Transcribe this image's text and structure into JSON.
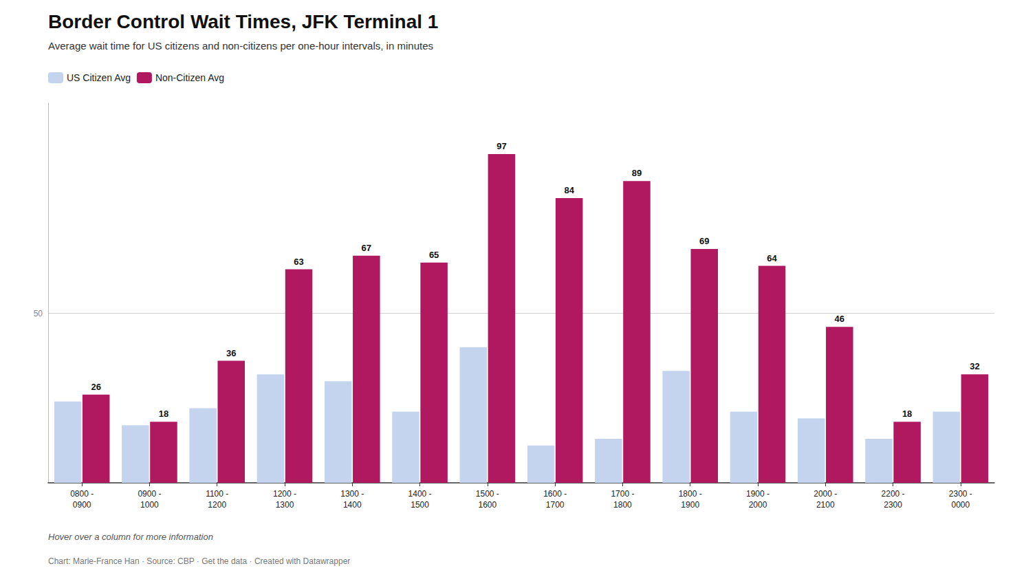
{
  "chart_data": {
    "type": "bar",
    "title": "Border Control Wait Times, JFK Terminal 1",
    "subtitle": "Average wait time for US citizens and non-citizens per one-hour intervals, in minutes",
    "annotations": [
      "Hover over a column for more information",
      "Chart: Marie-France Han · Source: CBP · Get the data · Created with Datawrapper"
    ],
    "categories": [
      "0800 -\n0900",
      "0900 -\n1000",
      "1100 -\n1200",
      "1200 -\n1300",
      "1300 -\n1400",
      "1400 -\n1500",
      "1500 -\n1600",
      "1600 -\n1700",
      "1700 -\n1800",
      "1800 -\n1900",
      "1900 -\n2000",
      "2000 -\n2100",
      "2200 -\n2300",
      "2300 -\n0000"
    ],
    "series": [
      {
        "name": "US Citizen Avg",
        "color": "#c5d4ee",
        "values": [
          24,
          17,
          22,
          32,
          30,
          21,
          40,
          11,
          13,
          33,
          21,
          19,
          13,
          21
        ]
      },
      {
        "name": "Non-Citizen Avg",
        "color": "#b0195f",
        "data_labels": true,
        "values": [
          26,
          18,
          36,
          63,
          67,
          65,
          97,
          84,
          89,
          69,
          64,
          46,
          18,
          32
        ]
      }
    ],
    "ylim": [
      0,
      112
    ],
    "yticks": [
      50
    ],
    "grid": true,
    "legend": "upper left"
  }
}
